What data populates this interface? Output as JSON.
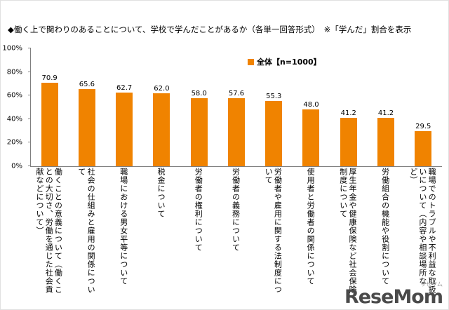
{
  "title": "◆働く上で関わりのあることについて、学校で学んだことがあるか（各単一回答形式）　※「学んだ」割合を表示",
  "legend": {
    "label": "全体【n=1000】",
    "color": "#f08300"
  },
  "logo": {
    "small": "リセマム",
    "main": "ReseMom"
  },
  "chart_data": {
    "type": "bar",
    "title": "◆働く上で関わりのあることについて、学校で学んだことがあるか（各単一回答形式）　※「学んだ」割合を表示",
    "categories": [
      "働くことの意義について（働くことの大切さ、労働を通じた社会貢献などについて）",
      "社会の仕組みと雇用の関係について",
      "職場における男女平等について",
      "税金について",
      "労働者の権利について",
      "労働者の義務について",
      "労働者や雇用に関する法制度について",
      "使用者と労働者の関係について",
      "厚生年金や健康保険など社会保険制度について",
      "労働組合の機能や役割について",
      "職場でのトラブルや不利益な取扱いについて（内容や相談場所など）"
    ],
    "values": [
      70.9,
      65.6,
      62.7,
      62.0,
      58.0,
      57.6,
      55.3,
      48.0,
      41.2,
      41.2,
      29.5
    ],
    "xlabel": "",
    "ylabel": "",
    "ylim": [
      0,
      100
    ],
    "yticks": [
      0,
      20,
      40,
      60,
      80,
      100
    ],
    "ytick_labels": [
      "0%",
      "20%",
      "40%",
      "60%",
      "80%",
      "100%"
    ],
    "bar_color": "#f08300",
    "grid": false,
    "legend_entries": [
      "全体【n=1000】"
    ],
    "legend_position": "top-right"
  }
}
